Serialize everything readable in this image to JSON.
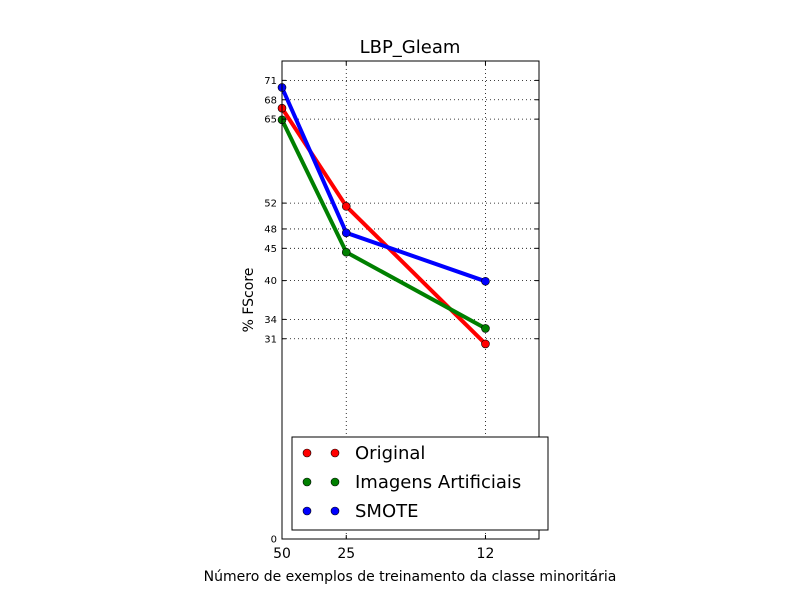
{
  "chart_data": {
    "type": "line",
    "title": "LBP_Gleam",
    "xlabel": "Número de exemplos de treinamento da classe minoritária",
    "ylabel": "% FScore",
    "x": [
      50,
      25,
      12
    ],
    "x_tick_labels": [
      "50",
      "25",
      "12"
    ],
    "y_ticks": [
      0,
      31,
      34,
      40,
      45,
      48,
      52,
      65,
      68,
      71
    ],
    "y_tick_labels": [
      "0",
      "31",
      "34",
      "40",
      "45",
      "48",
      "52",
      "65",
      "68",
      "71"
    ],
    "ylim": [
      0,
      74
    ],
    "xlim": [
      50,
      10
    ],
    "grid": true,
    "legend_position": "lower-center",
    "series": [
      {
        "name": "Original",
        "color": "#ff0000",
        "values": [
          66.7,
          51.5,
          30.2
        ]
      },
      {
        "name": "Imagens Artificiais",
        "color": "#008000",
        "values": [
          64.9,
          44.4,
          32.6
        ]
      },
      {
        "name": "SMOTE",
        "color": "#0000ff",
        "values": [
          69.9,
          47.4,
          39.9
        ]
      }
    ]
  }
}
